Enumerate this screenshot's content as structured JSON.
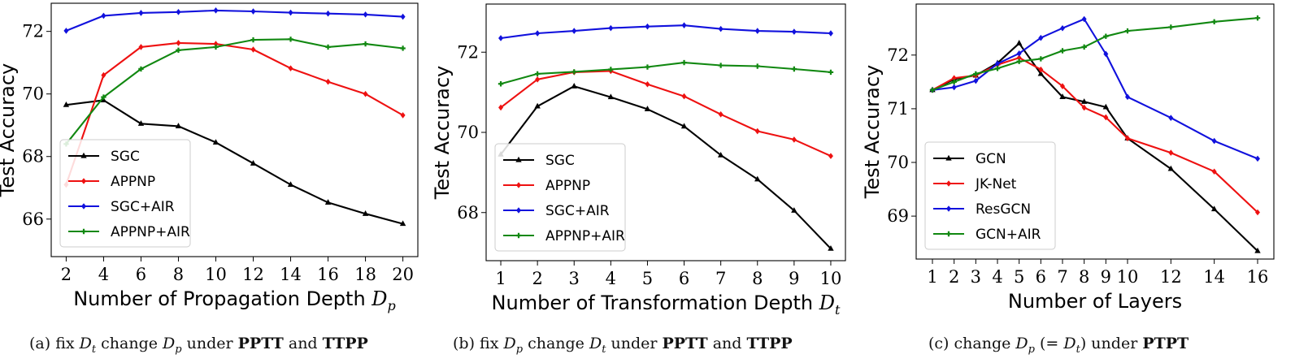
{
  "chart_data": [
    {
      "type": "line",
      "panel": "a",
      "ylabel": "Test Accuracy",
      "xlabel_text": "Number of Propagation Depth ",
      "xlabel_sym": "D",
      "xlabel_sub": "p",
      "x": [
        2,
        4,
        6,
        8,
        10,
        12,
        14,
        16,
        18,
        20
      ],
      "xlim": [
        1.2,
        20.8
      ],
      "ylim": [
        64.8,
        72.9
      ],
      "yticks": [
        66,
        68,
        70,
        72
      ],
      "legend_position": "lower-left",
      "series": [
        {
          "name": "SGC",
          "color": "#000000",
          "marker": "triangle",
          "values": [
            69.65,
            69.8,
            69.05,
            68.97,
            68.45,
            67.78,
            67.1,
            66.53,
            66.17,
            65.85
          ]
        },
        {
          "name": "APPNP",
          "color": "#ee1111",
          "marker": "diamond",
          "values": [
            67.1,
            70.6,
            71.5,
            71.63,
            71.6,
            71.42,
            70.82,
            70.39,
            70.0,
            69.32
          ]
        },
        {
          "name": "SGC+AIR",
          "color": "#1111dd",
          "marker": "diamond",
          "values": [
            72.02,
            72.5,
            72.59,
            72.62,
            72.67,
            72.64,
            72.6,
            72.57,
            72.54,
            72.47
          ]
        },
        {
          "name": "APPNP+AIR",
          "color": "#118811",
          "marker": "cross",
          "values": [
            68.4,
            69.9,
            70.8,
            71.4,
            71.5,
            71.73,
            71.75,
            71.5,
            71.6,
            71.46
          ]
        }
      ],
      "caption": {
        "pre": "(a)  fix ",
        "mid1": " change ",
        "mid2": " under ",
        "b1": "PPTT",
        "and": " and ",
        "b2": "TTPP",
        "v1": "D",
        "s1": "t",
        "v2": "D",
        "s2": "p"
      }
    },
    {
      "type": "line",
      "panel": "b",
      "ylabel": "Test Accuracy",
      "xlabel_text": "Number of Transformation Depth ",
      "xlabel_sym": "D",
      "xlabel_sub": "t",
      "x": [
        1,
        2,
        3,
        4,
        5,
        6,
        7,
        8,
        9,
        10
      ],
      "xlim": [
        0.6,
        10.4
      ],
      "ylim": [
        66.8,
        73.2
      ],
      "yticks": [
        68,
        70,
        72
      ],
      "legend_position": "lower-left",
      "series": [
        {
          "name": "SGC",
          "color": "#000000",
          "marker": "triangle",
          "values": [
            69.45,
            70.65,
            71.15,
            70.88,
            70.58,
            70.15,
            69.43,
            68.83,
            68.05,
            67.1
          ]
        },
        {
          "name": "APPNP",
          "color": "#ee1111",
          "marker": "diamond",
          "values": [
            70.62,
            71.32,
            71.5,
            71.53,
            71.2,
            70.9,
            70.45,
            70.03,
            69.82,
            69.41
          ]
        },
        {
          "name": "SGC+AIR",
          "color": "#1111dd",
          "marker": "diamond",
          "values": [
            72.35,
            72.47,
            72.53,
            72.6,
            72.64,
            72.67,
            72.58,
            72.53,
            72.51,
            72.47
          ]
        },
        {
          "name": "APPNP+AIR",
          "color": "#118811",
          "marker": "cross",
          "values": [
            71.21,
            71.46,
            71.51,
            71.57,
            71.63,
            71.74,
            71.67,
            71.65,
            71.58,
            71.5
          ]
        }
      ],
      "caption": {
        "pre": "(b)  fix ",
        "mid1": " change ",
        "mid2": " under ",
        "b1": "PPTT",
        "and": " and ",
        "b2": "TTPP",
        "v1": "D",
        "s1": "p",
        "v2": "D",
        "s2": "t"
      }
    },
    {
      "type": "line",
      "panel": "c",
      "ylabel": "Test Accuracy",
      "xlabel_text": "Number of Layers",
      "xlabel_sym": "",
      "xlabel_sub": "",
      "x": [
        1,
        2,
        3,
        4,
        5,
        6,
        7,
        8,
        9,
        10,
        12,
        14,
        16
      ],
      "xlim": [
        0.25,
        16.75
      ],
      "ylim": [
        68.2,
        72.95
      ],
      "yticks": [
        69,
        70,
        71,
        72
      ],
      "legend_position": "lower-left",
      "series": [
        {
          "name": "GCN",
          "color": "#000000",
          "marker": "triangle",
          "values": [
            71.35,
            71.55,
            71.62,
            71.85,
            72.22,
            71.65,
            71.22,
            71.13,
            71.03,
            70.45,
            69.88,
            69.13,
            68.35
          ]
        },
        {
          "name": "JK-Net",
          "color": "#ee1111",
          "marker": "diamond",
          "values": [
            71.35,
            71.57,
            71.62,
            71.82,
            71.95,
            71.73,
            71.42,
            71.02,
            70.84,
            70.45,
            70.18,
            69.83,
            69.07
          ]
        },
        {
          "name": "ResGCN",
          "color": "#1111dd",
          "marker": "diamond",
          "values": [
            71.35,
            71.4,
            71.52,
            71.84,
            72.03,
            72.32,
            72.5,
            72.67,
            72.02,
            71.22,
            70.83,
            70.4,
            70.07
          ]
        },
        {
          "name": "GCN+AIR",
          "color": "#118811",
          "marker": "cross",
          "values": [
            71.35,
            71.5,
            71.65,
            71.75,
            71.88,
            71.93,
            72.08,
            72.15,
            72.35,
            72.45,
            72.52,
            72.62,
            72.69
          ]
        }
      ],
      "caption": {
        "pre": "(c)  change ",
        "mid1": " (= ",
        "mid2": ") under ",
        "b1": "PTPT",
        "and": "",
        "b2": "",
        "v1": "D",
        "s1": "p",
        "v2": "D",
        "s2": "t"
      }
    }
  ]
}
